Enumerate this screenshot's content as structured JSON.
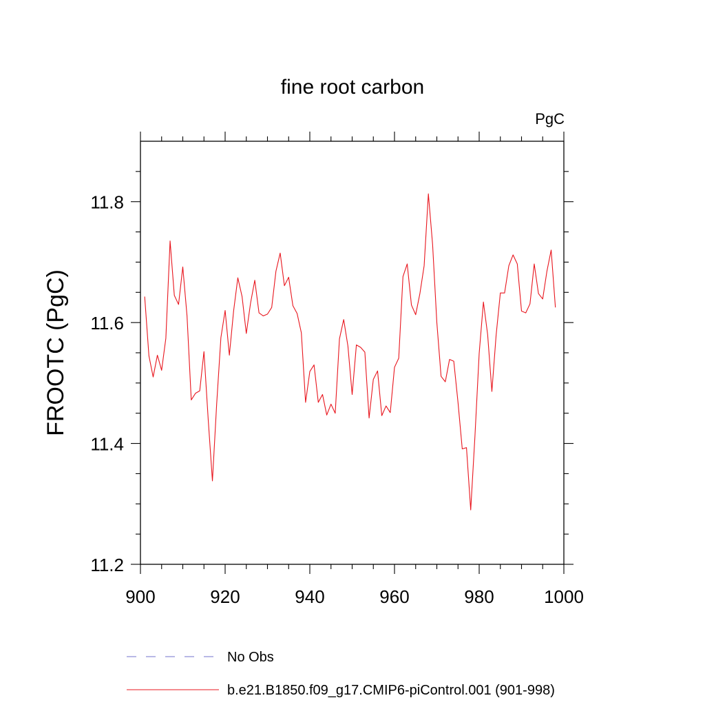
{
  "chart_data": {
    "type": "line",
    "title": "fine root carbon",
    "units": "PgC",
    "xlabel": "",
    "ylabel": "FROOTC  (PgC)",
    "xlim": [
      900,
      1000
    ],
    "ylim": [
      11.2,
      11.9
    ],
    "xticks": [
      900,
      920,
      940,
      960,
      980,
      1000
    ],
    "xtick_labels": [
      "900",
      "920",
      "940",
      "960",
      "980",
      "1000"
    ],
    "x_minor_ticks": [
      905,
      910,
      915,
      925,
      930,
      935,
      945,
      950,
      955,
      965,
      970,
      975,
      985,
      990,
      995
    ],
    "yticks": [
      11.2,
      11.4,
      11.6,
      11.8
    ],
    "ytick_labels": [
      "11.2",
      "11.4",
      "11.6",
      "11.8"
    ],
    "y_minor_ticks": [
      11.25,
      11.3,
      11.35,
      11.45,
      11.5,
      11.55,
      11.65,
      11.7,
      11.75,
      11.85
    ],
    "grid": false,
    "legend_position": "bottom-left",
    "series": [
      {
        "name": "No Obs",
        "color": "#7070cc",
        "style": "dashed",
        "x": [],
        "values": []
      },
      {
        "name": "b.e21.B1850.f09_g17.CMIP6-piControl.001 (901-998)",
        "color": "#e8141c",
        "style": "solid",
        "x": [
          901,
          902,
          903,
          904,
          905,
          906,
          907,
          908,
          909,
          910,
          911,
          912,
          913,
          914,
          915,
          916,
          917,
          918,
          919,
          920,
          921,
          922,
          923,
          924,
          925,
          926,
          927,
          928,
          929,
          930,
          931,
          932,
          933,
          934,
          935,
          936,
          937,
          938,
          939,
          940,
          941,
          942,
          943,
          944,
          945,
          946,
          947,
          948,
          949,
          950,
          951,
          952,
          953,
          954,
          955,
          956,
          957,
          958,
          959,
          960,
          961,
          962,
          963,
          964,
          965,
          966,
          967,
          968,
          969,
          970,
          971,
          972,
          973,
          974,
          975,
          976,
          977,
          978,
          979,
          980,
          981,
          982,
          983,
          984,
          985,
          986,
          987,
          988,
          989,
          990,
          991,
          992,
          993,
          994,
          995,
          996,
          997,
          998
        ],
        "values": [
          11.643,
          11.545,
          11.51,
          11.546,
          11.521,
          11.574,
          11.735,
          11.645,
          11.63,
          11.692,
          11.611,
          11.472,
          11.483,
          11.487,
          11.552,
          11.44,
          11.338,
          11.465,
          11.575,
          11.62,
          11.546,
          11.619,
          11.674,
          11.643,
          11.582,
          11.632,
          11.67,
          11.616,
          11.611,
          11.614,
          11.625,
          11.685,
          11.715,
          11.661,
          11.675,
          11.628,
          11.615,
          11.583,
          11.468,
          11.519,
          11.53,
          11.468,
          11.481,
          11.447,
          11.465,
          11.45,
          11.573,
          11.605,
          11.561,
          11.481,
          11.563,
          11.559,
          11.551,
          11.442,
          11.506,
          11.52,
          11.446,
          11.462,
          11.451,
          11.526,
          11.541,
          11.676,
          11.697,
          11.629,
          11.613,
          11.648,
          11.694,
          11.813,
          11.729,
          11.6,
          11.511,
          11.502,
          11.539,
          11.536,
          11.468,
          11.391,
          11.393,
          11.29,
          11.412,
          11.549,
          11.634,
          11.58,
          11.486,
          11.579,
          11.649,
          11.649,
          11.694,
          11.712,
          11.697,
          11.619,
          11.616,
          11.631,
          11.697,
          11.648,
          11.639,
          11.685,
          11.72,
          11.625
        ]
      }
    ]
  }
}
